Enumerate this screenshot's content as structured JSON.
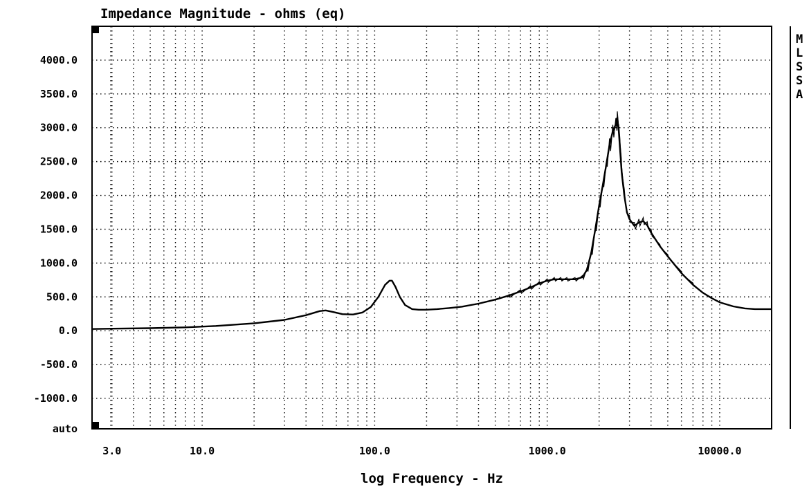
{
  "chart_data": {
    "type": "line",
    "title": "Impedance Magnitude - ohms (eq)",
    "xlabel": "log Frequency - Hz",
    "ylabel": "",
    "x_scale": "log",
    "xlim": [
      2.3,
      20000
    ],
    "ylim": [
      -1450,
      4500
    ],
    "x_ticks": [
      3,
      10,
      100,
      1000,
      10000
    ],
    "x_tick_labels": [
      "3.0",
      "10.0",
      "100.0",
      "1000.0",
      "10000.0"
    ],
    "y_ticks": [
      4000,
      3500,
      3000,
      2500,
      2000,
      1500,
      1000,
      500,
      0,
      -500,
      -1000
    ],
    "y_tick_labels": [
      "4000.0",
      "3500.0",
      "3000.0",
      "2500.0",
      "2000.0",
      "1500.0",
      "1000.0",
      "500.0",
      "0.0",
      "-500.0",
      "-1000.0"
    ],
    "y_bottom_label": "auto",
    "grid": true,
    "side_letters": [
      "M",
      "L",
      "S",
      "S",
      "A"
    ],
    "series": [
      {
        "x": [
          2.3,
          3,
          5,
          8,
          12,
          20,
          30,
          40,
          48,
          52,
          58,
          65,
          75,
          85,
          95,
          105,
          115,
          122,
          126,
          132,
          140,
          150,
          165,
          180,
          200,
          230,
          270,
          320,
          400,
          500,
          600,
          700,
          800,
          900,
          1000,
          1100,
          1200,
          1300,
          1450,
          1600,
          1700,
          1800,
          1900,
          2000,
          2100,
          2200,
          2300,
          2400,
          2500,
          2550,
          2600,
          2650,
          2700,
          2800,
          2900,
          3000,
          3200,
          3400,
          3600,
          3800,
          4000,
          4500,
          5000,
          6000,
          7000,
          8000,
          9000,
          10000,
          12000,
          14000,
          16000,
          18000,
          20000
        ],
        "values": [
          25,
          30,
          38,
          50,
          70,
          110,
          160,
          230,
          290,
          300,
          275,
          245,
          240,
          270,
          350,
          500,
          680,
          740,
          740,
          650,
          500,
          380,
          320,
          310,
          310,
          320,
          335,
          355,
          400,
          460,
          520,
          580,
          640,
          700,
          740,
          760,
          760,
          760,
          760,
          790,
          900,
          1150,
          1500,
          1850,
          2150,
          2450,
          2750,
          2950,
          3050,
          3150,
          2950,
          2650,
          2350,
          2000,
          1750,
          1650,
          1550,
          1600,
          1620,
          1560,
          1450,
          1250,
          1100,
          850,
          680,
          560,
          480,
          420,
          360,
          330,
          320,
          320,
          320
        ]
      }
    ]
  }
}
